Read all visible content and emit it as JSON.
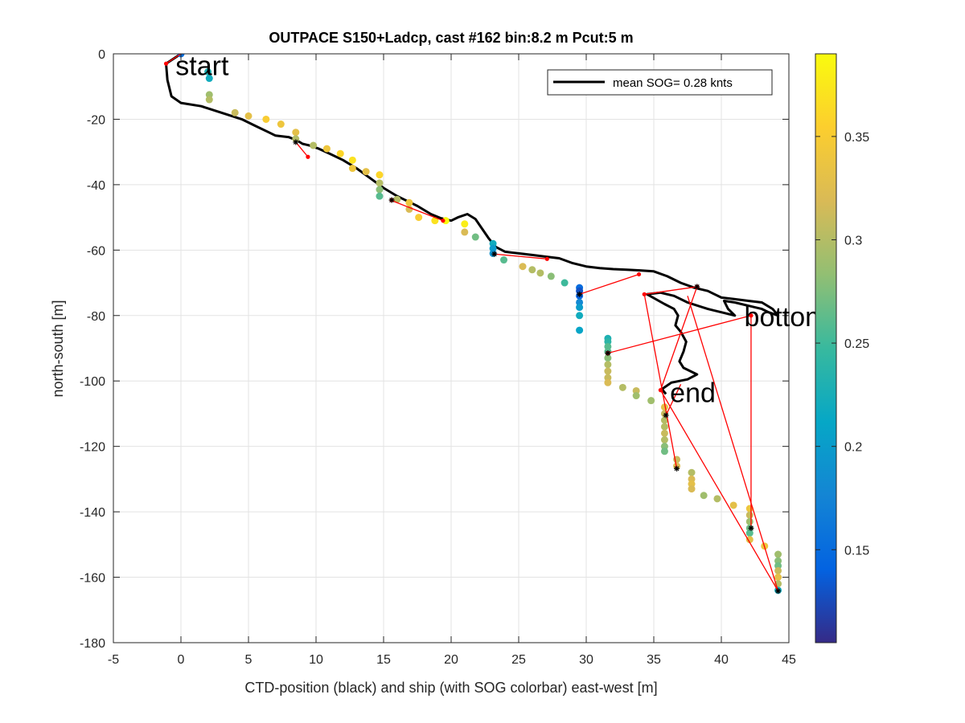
{
  "chart_data": {
    "type": "scatter",
    "title": "OUTPACE S150+Ladcp, cast #162 bin:8.2 m  Pcut:5 m",
    "xlabel": "CTD-position (black) and ship (with SOG colorbar) east-west [m]",
    "ylabel": "north-south [m]",
    "xlim": [
      -5,
      45
    ],
    "ylim": [
      -180,
      0
    ],
    "xticks": [
      -5,
      0,
      5,
      10,
      15,
      20,
      25,
      30,
      35,
      40,
      45
    ],
    "yticks": [
      -180,
      -160,
      -140,
      -120,
      -100,
      -80,
      -60,
      -40,
      -20,
      0
    ],
    "grid": true,
    "legend": {
      "position": "top-right",
      "entry": "mean SOG=  0.28 knts"
    },
    "colorbar": {
      "range": [
        0.105,
        0.39
      ],
      "ticks": [
        0.15,
        0.2,
        0.25,
        0.3,
        0.35
      ],
      "colors": [
        "#352a87",
        "#0363e1",
        "#1485d4",
        "#06a7c6",
        "#38b99e",
        "#92bf73",
        "#d9ba56",
        "#fcce2e",
        "#f9fb0e"
      ]
    },
    "annotations": [
      {
        "text": "start",
        "x": -0.4,
        "y": -3.5
      },
      {
        "text": "bottom",
        "x": 41.7,
        "y": -80.3
      },
      {
        "text": "end",
        "x": 36.2,
        "y": -103.5
      }
    ],
    "ctd_track": [
      [
        0,
        0
      ],
      [
        -1.1,
        -3
      ],
      [
        -1,
        -8
      ],
      [
        -0.7,
        -13
      ],
      [
        0,
        -15
      ],
      [
        1.5,
        -16
      ],
      [
        3,
        -18
      ],
      [
        4.5,
        -20
      ],
      [
        5.5,
        -22
      ],
      [
        6.5,
        -24
      ],
      [
        7,
        -25
      ],
      [
        8,
        -25.5
      ],
      [
        8.6,
        -26.5
      ],
      [
        9,
        -27.5
      ],
      [
        9.5,
        -28
      ],
      [
        10.2,
        -29
      ],
      [
        11,
        -30.5
      ],
      [
        12,
        -32.5
      ],
      [
        13,
        -35
      ],
      [
        14,
        -38
      ],
      [
        15,
        -41
      ],
      [
        16,
        -43.5
      ],
      [
        16.5,
        -44.5
      ],
      [
        17.5,
        -46.5
      ],
      [
        18.5,
        -49
      ],
      [
        19.2,
        -50.2
      ],
      [
        20,
        -51
      ],
      [
        20.5,
        -50
      ],
      [
        21.2,
        -49
      ],
      [
        21.8,
        -50.5
      ],
      [
        22.3,
        -53.5
      ],
      [
        22.8,
        -56.5
      ],
      [
        23.3,
        -59
      ],
      [
        24,
        -60.5
      ],
      [
        25,
        -61
      ],
      [
        26,
        -61.5
      ],
      [
        27,
        -62
      ],
      [
        28,
        -62.5
      ],
      [
        29,
        -64
      ],
      [
        30,
        -65
      ],
      [
        31,
        -65.5
      ],
      [
        32,
        -65.8
      ],
      [
        33,
        -66
      ],
      [
        34,
        -66.2
      ],
      [
        35,
        -66.5
      ],
      [
        36,
        -68
      ],
      [
        37,
        -70
      ],
      [
        38,
        -71.5
      ],
      [
        39,
        -72.5
      ],
      [
        40,
        -74.5
      ],
      [
        41,
        -75
      ],
      [
        42,
        -75.5
      ],
      [
        43,
        -76
      ],
      [
        43.8,
        -78
      ],
      [
        44.2,
        -80
      ],
      [
        43.5,
        -79
      ],
      [
        43,
        -78
      ],
      [
        42,
        -77
      ],
      [
        41,
        -76
      ],
      [
        40.2,
        -75.5
      ],
      [
        40.5,
        -78
      ],
      [
        41,
        -80
      ],
      [
        40,
        -79
      ],
      [
        39,
        -78
      ],
      [
        37.5,
        -76
      ],
      [
        36.5,
        -74
      ],
      [
        35.5,
        -73
      ],
      [
        34.5,
        -73.5
      ],
      [
        35.8,
        -76.5
      ],
      [
        36.5,
        -78
      ],
      [
        36.8,
        -80
      ],
      [
        36.6,
        -83
      ],
      [
        37,
        -85
      ],
      [
        37.4,
        -88
      ],
      [
        37.2,
        -91
      ],
      [
        36.9,
        -94
      ],
      [
        37.2,
        -96
      ],
      [
        38.2,
        -98
      ],
      [
        37.5,
        -99.5
      ],
      [
        36.3,
        -100.5
      ],
      [
        35.6,
        -102.5
      ],
      [
        35.9,
        -104
      ]
    ],
    "ship_points": [
      [
        0,
        0,
        0.15
      ],
      [
        2,
        -5.5,
        0.23
      ],
      [
        2.1,
        -7.5,
        0.22
      ],
      [
        2.1,
        -12.5,
        0.29
      ],
      [
        2.1,
        -14,
        0.3
      ],
      [
        4,
        -18,
        0.31
      ],
      [
        5,
        -19,
        0.33
      ],
      [
        6.3,
        -20,
        0.35
      ],
      [
        7.4,
        -21.5,
        0.34
      ],
      [
        8.5,
        -24,
        0.33
      ],
      [
        8.5,
        -26,
        0.3
      ],
      [
        9.8,
        -28,
        0.3
      ],
      [
        10.8,
        -29,
        0.34
      ],
      [
        11.8,
        -30.5,
        0.36
      ],
      [
        12.7,
        -32.5,
        0.37
      ],
      [
        12.7,
        -35,
        0.34
      ],
      [
        13.7,
        -36,
        0.33
      ],
      [
        14.7,
        -37,
        0.36
      ],
      [
        14.7,
        -39.5,
        0.3
      ],
      [
        14.7,
        -41.5,
        0.28
      ],
      [
        14.7,
        -43.5,
        0.26
      ],
      [
        16,
        -44.5,
        0.3
      ],
      [
        16.9,
        -45.5,
        0.34
      ],
      [
        16.9,
        -47.5,
        0.32
      ],
      [
        17.6,
        -50,
        0.35
      ],
      [
        18.8,
        -51,
        0.37
      ],
      [
        19.6,
        -51,
        0.39
      ],
      [
        21,
        -52,
        0.38
      ],
      [
        21,
        -54.5,
        0.32
      ],
      [
        21.8,
        -56,
        0.27
      ],
      [
        23.1,
        -58,
        0.22
      ],
      [
        23.1,
        -59.5,
        0.2
      ],
      [
        23.1,
        -61,
        0.19
      ],
      [
        23.9,
        -63,
        0.26
      ],
      [
        25.3,
        -65,
        0.32
      ],
      [
        26,
        -66,
        0.3
      ],
      [
        26.6,
        -67,
        0.3
      ],
      [
        27.4,
        -68,
        0.28
      ],
      [
        28.4,
        -70,
        0.25
      ],
      [
        29.5,
        -71.5,
        0.15
      ],
      [
        29.5,
        -72.5,
        0.13
      ],
      [
        29.5,
        -74,
        0.14
      ],
      [
        29.5,
        -76,
        0.18
      ],
      [
        29.5,
        -77.5,
        0.2
      ],
      [
        29.5,
        -80,
        0.22
      ],
      [
        29.5,
        -84.5,
        0.21
      ],
      [
        31.6,
        -87,
        0.23
      ],
      [
        31.6,
        -88,
        0.24
      ],
      [
        31.6,
        -89.5,
        0.26
      ],
      [
        31.6,
        -91,
        0.26
      ],
      [
        31.6,
        -93,
        0.28
      ],
      [
        31.6,
        -95,
        0.3
      ],
      [
        31.6,
        -97,
        0.31
      ],
      [
        31.6,
        -99,
        0.31
      ],
      [
        31.6,
        -100.5,
        0.32
      ],
      [
        32.7,
        -102,
        0.3
      ],
      [
        33.7,
        -103,
        0.31
      ],
      [
        33.7,
        -104.5,
        0.29
      ],
      [
        34.8,
        -106,
        0.29
      ],
      [
        35.8,
        -108,
        0.33
      ],
      [
        35.8,
        -110,
        0.31
      ],
      [
        35.8,
        -112,
        0.3
      ],
      [
        35.8,
        -114,
        0.3
      ],
      [
        35.8,
        -116,
        0.31
      ],
      [
        35.8,
        -118,
        0.3
      ],
      [
        35.8,
        -120,
        0.28
      ],
      [
        35.8,
        -121.5,
        0.27
      ],
      [
        36.7,
        -124,
        0.31
      ],
      [
        36.7,
        -126,
        0.32
      ],
      [
        37.8,
        -128,
        0.3
      ],
      [
        37.8,
        -130,
        0.32
      ],
      [
        37.8,
        -131.5,
        0.33
      ],
      [
        37.8,
        -133,
        0.32
      ],
      [
        38.7,
        -135,
        0.29
      ],
      [
        39.7,
        -136,
        0.3
      ],
      [
        40.9,
        -138,
        0.33
      ],
      [
        42.1,
        -139,
        0.34
      ],
      [
        42.1,
        -141,
        0.31
      ],
      [
        42.1,
        -143,
        0.29
      ],
      [
        42.1,
        -145,
        0.27
      ],
      [
        42.1,
        -146.5,
        0.26
      ],
      [
        42.1,
        -148.5,
        0.33
      ],
      [
        43.2,
        -150.5,
        0.34
      ],
      [
        44.2,
        -153,
        0.29
      ],
      [
        44.2,
        -155,
        0.28
      ],
      [
        44.2,
        -156.5,
        0.27
      ],
      [
        44.2,
        -158,
        0.31
      ],
      [
        44.2,
        -160,
        0.33
      ],
      [
        44.2,
        -162,
        0.3
      ],
      [
        44.2,
        -164,
        0.22
      ]
    ],
    "red_segments": [
      [
        [
          -1.1,
          -3
        ],
        [
          0,
          0
        ]
      ],
      [
        [
          8.5,
          -27
        ],
        [
          9.4,
          -31.5
        ]
      ],
      [
        [
          15.5,
          -44.7
        ],
        [
          19.4,
          -51
        ]
      ],
      [
        [
          23.2,
          -61.2
        ],
        [
          27.1,
          -62.7
        ]
      ],
      [
        [
          29.5,
          -73.5
        ],
        [
          33.9,
          -67.4
        ]
      ],
      [
        [
          34.3,
          -73.5
        ],
        [
          38.2,
          -71.2
        ]
      ],
      [
        [
          38.2,
          -71.2
        ],
        [
          35.5,
          -102.8
        ]
      ],
      [
        [
          34.3,
          -73.5
        ],
        [
          36.7,
          -126.8
        ]
      ],
      [
        [
          31.6,
          -91.5
        ],
        [
          42.2,
          -80
        ]
      ],
      [
        [
          42.2,
          -80
        ],
        [
          42.2,
          -145
        ]
      ],
      [
        [
          35.5,
          -102.8
        ],
        [
          44.2,
          -164.2
        ]
      ],
      [
        [
          44.2,
          -164.2
        ],
        [
          37.5,
          -74
        ]
      ],
      [
        [
          35.9,
          -110.5
        ],
        [
          37,
          -101
        ]
      ]
    ],
    "red_markers": [
      [
        -1.1,
        -3
      ],
      [
        9.4,
        -31.5
      ],
      [
        15.6,
        -44.7
      ],
      [
        19.4,
        -51
      ],
      [
        27.1,
        -62.7
      ],
      [
        33.9,
        -67.4
      ],
      [
        34.3,
        -73.5
      ],
      [
        38.2,
        -71.2
      ],
      [
        35.5,
        -102.8
      ],
      [
        42.2,
        -80
      ],
      [
        31.6,
        -91.5
      ]
    ],
    "black_markers": [
      [
        8.5,
        -27
      ],
      [
        15.6,
        -44.7
      ],
      [
        23.2,
        -61.2
      ],
      [
        29.5,
        -73.5
      ],
      [
        31.6,
        -91.5
      ],
      [
        38.2,
        -71.2
      ],
      [
        35.9,
        -110.5
      ],
      [
        36.7,
        -126.8
      ],
      [
        42.2,
        -145
      ],
      [
        44.2,
        -164.2
      ]
    ]
  }
}
